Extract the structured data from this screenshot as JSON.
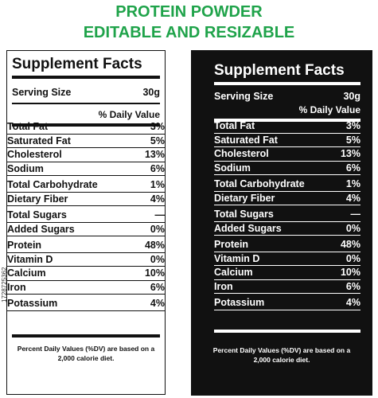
{
  "header": {
    "line1": "PROTEIN POWDER",
    "line2": "EDITABLE AND RESIZABLE"
  },
  "labels": [
    {
      "theme": "light",
      "title": "Supplement Facts",
      "serving_label": "Serving Size",
      "serving_value": "30g",
      "dv_header": "% Daily Value",
      "nutrients": [
        {
          "name": "Total Fat",
          "value": "3%"
        },
        {
          "name": "Saturated Fat",
          "value": "5%"
        },
        {
          "name": "Cholesterol",
          "value": "13%"
        },
        {
          "name": "Sodium",
          "value": "6%"
        },
        {
          "name": "Total Carbohydrate",
          "value": "1%"
        },
        {
          "name": "Dietary Fiber",
          "value": "4%"
        },
        {
          "name": "Total Sugars",
          "value": "—"
        },
        {
          "name": "Added Sugars",
          "value": "0%"
        },
        {
          "name": "Protein",
          "value": "48%"
        },
        {
          "name": "Vitamin D",
          "value": "0%"
        },
        {
          "name": "Calcium",
          "value": "10%"
        },
        {
          "name": "Iron",
          "value": "6%"
        },
        {
          "name": "Potassium",
          "value": "4%"
        }
      ],
      "footnote_line1": "Percent Daily Values (%DV) are based on a",
      "footnote_line2": "2,000 calorie diet."
    },
    {
      "theme": "dark",
      "title": "Supplement Facts",
      "serving_label": "Serving Size",
      "serving_value": "30g",
      "dv_header": "% Daily Value",
      "nutrients": [
        {
          "name": "Total Fat",
          "value": "3%"
        },
        {
          "name": "Saturated Fat",
          "value": "5%"
        },
        {
          "name": "Cholesterol",
          "value": "13%"
        },
        {
          "name": "Sodium",
          "value": "6%"
        },
        {
          "name": "Total Carbohydrate",
          "value": "1%"
        },
        {
          "name": "Dietary Fiber",
          "value": "4%"
        },
        {
          "name": "Total Sugars",
          "value": "—"
        },
        {
          "name": "Added Sugars",
          "value": "0%"
        },
        {
          "name": "Protein",
          "value": "48%"
        },
        {
          "name": "Vitamin D",
          "value": "0%"
        },
        {
          "name": "Calcium",
          "value": "10%"
        },
        {
          "name": "Iron",
          "value": "6%"
        },
        {
          "name": "Potassium",
          "value": "4%"
        }
      ],
      "footnote_line1": "Percent Daily Values (%DV) are based on a",
      "footnote_line2": "2,000 calorie diet."
    }
  ],
  "watermark": "1728725362",
  "colors": {
    "title_green": "#1fa34a",
    "dark_bg": "#111111",
    "light_bg": "#ffffff"
  }
}
